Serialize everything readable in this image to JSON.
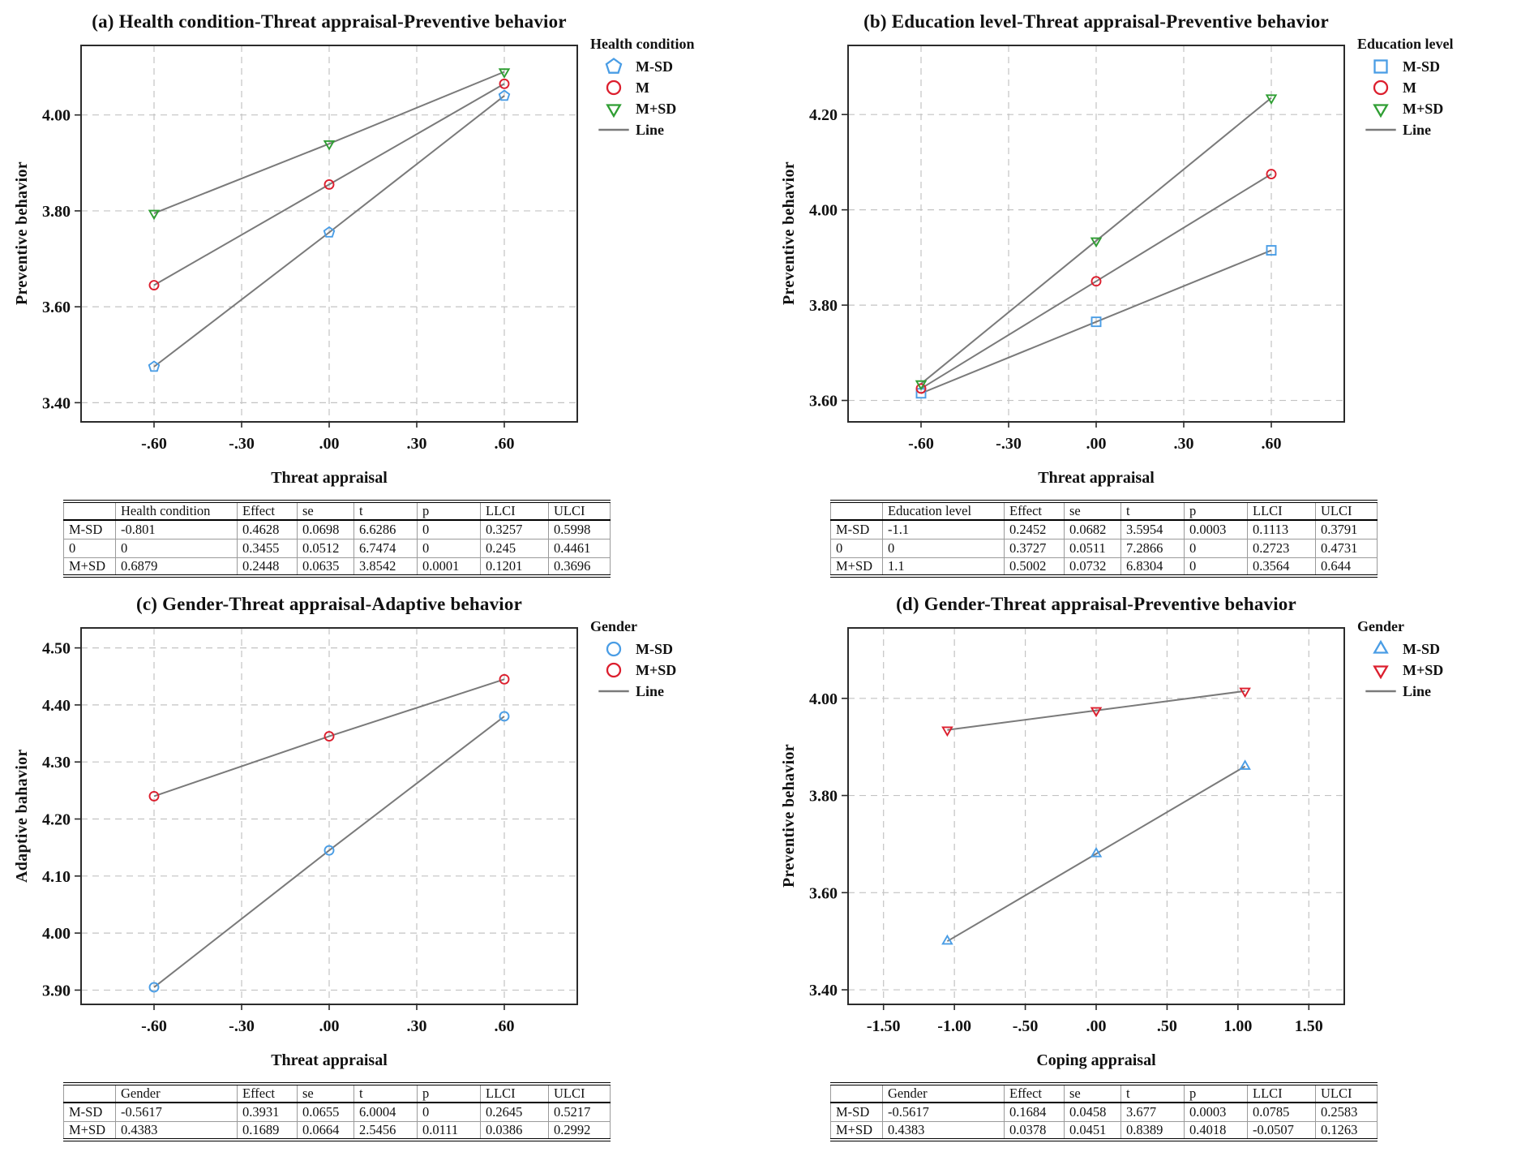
{
  "figure": {
    "background": "#ffffff",
    "palette": {
      "blue": "#4a9de5",
      "red": "#dc1f2e",
      "green": "#2f9e33",
      "gray_line": "#7a7a7a",
      "grid": "#c3c3c3",
      "frame": "#2b2b2b"
    }
  },
  "chart_data": [
    {
      "id": "a",
      "type": "line",
      "title": "(a) Health condition-Threat appraisal-Preventive behavior",
      "xlabel": "Threat appraisal",
      "ylabel": "Preventive behavior",
      "xlim": [
        -0.85,
        0.85
      ],
      "ylim": [
        3.36,
        4.145
      ],
      "grid": true,
      "xticks": [
        -0.6,
        -0.3,
        0,
        0.3,
        0.6
      ],
      "xtick_labels": [
        "-.60",
        "-.30",
        ".00",
        ".30",
        ".60"
      ],
      "yticks": [
        3.4,
        3.6,
        3.8,
        4.0
      ],
      "ytick_labels": [
        "3.40",
        "3.60",
        "3.80",
        "4.00"
      ],
      "legend": {
        "title": "Health condition",
        "position": "right",
        "items": [
          {
            "label": "M-SD",
            "marker": "pentagon",
            "color": "blue"
          },
          {
            "label": "M",
            "marker": "circle",
            "color": "red"
          },
          {
            "label": "M+SD",
            "marker": "triangle-down",
            "color": "green"
          },
          {
            "label": "Line",
            "marker": "line",
            "color": "gray_line"
          }
        ]
      },
      "series": [
        {
          "name": "M-SD",
          "marker": "pentagon",
          "color": "blue",
          "x": [
            -0.6,
            0,
            0.6
          ],
          "y": [
            3.475,
            3.755,
            4.04
          ]
        },
        {
          "name": "M",
          "marker": "circle",
          "color": "red",
          "x": [
            -0.6,
            0,
            0.6
          ],
          "y": [
            3.645,
            3.855,
            4.065
          ]
        },
        {
          "name": "M+SD",
          "marker": "triangle-down",
          "color": "green",
          "x": [
            -0.6,
            0,
            0.6
          ],
          "y": [
            3.795,
            3.94,
            4.09
          ]
        }
      ],
      "table": {
        "headers": [
          "",
          "Health condition",
          "Effect",
          "se",
          "t",
          "p",
          "LLCI",
          "ULCI"
        ],
        "rows": [
          [
            "M-SD",
            "-0.801",
            "0.4628",
            "0.0698",
            "6.6286",
            "0",
            "0.3257",
            "0.5998"
          ],
          [
            "0",
            "0",
            "0.3455",
            "0.0512",
            "6.7474",
            "0",
            "0.245",
            "0.4461"
          ],
          [
            "M+SD",
            "0.6879",
            "0.2448",
            "0.0635",
            "3.8542",
            "0.0001",
            "0.1201",
            "0.3696"
          ]
        ]
      }
    },
    {
      "id": "b",
      "type": "line",
      "title": "(b) Education level-Threat appraisal-Preventive behavior",
      "xlabel": "Threat appraisal",
      "ylabel": "Preventive behavior",
      "xlim": [
        -0.85,
        0.85
      ],
      "ylim": [
        3.555,
        4.345
      ],
      "grid": true,
      "xticks": [
        -0.6,
        -0.3,
        0,
        0.3,
        0.6
      ],
      "xtick_labels": [
        "-.60",
        "-.30",
        ".00",
        ".30",
        ".60"
      ],
      "yticks": [
        3.6,
        3.8,
        4.0,
        4.2
      ],
      "ytick_labels": [
        "3.60",
        "3.80",
        "4.00",
        "4.20"
      ],
      "legend": {
        "title": "Education level",
        "position": "right",
        "items": [
          {
            "label": "M-SD",
            "marker": "square",
            "color": "blue"
          },
          {
            "label": "M",
            "marker": "circle",
            "color": "red"
          },
          {
            "label": "M+SD",
            "marker": "triangle-down",
            "color": "green"
          },
          {
            "label": "Line",
            "marker": "line",
            "color": "gray_line"
          }
        ]
      },
      "series": [
        {
          "name": "M-SD",
          "marker": "square",
          "color": "blue",
          "x": [
            -0.6,
            0,
            0.6
          ],
          "y": [
            3.615,
            3.765,
            3.915
          ]
        },
        {
          "name": "M",
          "marker": "circle",
          "color": "red",
          "x": [
            -0.6,
            0,
            0.6
          ],
          "y": [
            3.625,
            3.85,
            4.075
          ]
        },
        {
          "name": "M+SD",
          "marker": "triangle-down",
          "color": "green",
          "x": [
            -0.6,
            0,
            0.6
          ],
          "y": [
            3.635,
            3.935,
            4.235
          ]
        }
      ],
      "table": {
        "headers": [
          "",
          "Education level",
          "Effect",
          "se",
          "t",
          "p",
          "LLCI",
          "ULCI"
        ],
        "rows": [
          [
            "M-SD",
            "-1.1",
            "0.2452",
            "0.0682",
            "3.5954",
            "0.0003",
            "0.1113",
            "0.3791"
          ],
          [
            "0",
            "0",
            "0.3727",
            "0.0511",
            "7.2866",
            "0",
            "0.2723",
            "0.4731"
          ],
          [
            "M+SD",
            "1.1",
            "0.5002",
            "0.0732",
            "6.8304",
            "0",
            "0.3564",
            "0.644"
          ]
        ]
      }
    },
    {
      "id": "c",
      "type": "line",
      "title": "(c) Gender-Threat appraisal-Adaptive behavior",
      "xlabel": "Threat appraisal",
      "ylabel": "Adaptive bahavior",
      "xlim": [
        -0.85,
        0.85
      ],
      "ylim": [
        3.875,
        4.535
      ],
      "grid": true,
      "xticks": [
        -0.6,
        -0.3,
        0,
        0.3,
        0.6
      ],
      "xtick_labels": [
        "-.60",
        "-.30",
        ".00",
        ".30",
        ".60"
      ],
      "yticks": [
        3.9,
        4.0,
        4.1,
        4.2,
        4.3,
        4.4,
        4.5
      ],
      "ytick_labels": [
        "3.90",
        "4.00",
        "4.10",
        "4.20",
        "4.30",
        "4.40",
        "4.50"
      ],
      "legend": {
        "title": "Gender",
        "position": "right",
        "items": [
          {
            "label": "M-SD",
            "marker": "circle",
            "color": "blue"
          },
          {
            "label": "M+SD",
            "marker": "circle",
            "color": "red"
          },
          {
            "label": "Line",
            "marker": "line",
            "color": "gray_line"
          }
        ]
      },
      "series": [
        {
          "name": "M-SD",
          "marker": "circle",
          "color": "blue",
          "x": [
            -0.6,
            0,
            0.6
          ],
          "y": [
            3.905,
            4.145,
            4.38
          ]
        },
        {
          "name": "M+SD",
          "marker": "circle",
          "color": "red",
          "x": [
            -0.6,
            0,
            0.6
          ],
          "y": [
            4.24,
            4.345,
            4.445
          ]
        }
      ],
      "table": {
        "headers": [
          "",
          "Gender",
          "Effect",
          "se",
          "t",
          "p",
          "LLCI",
          "ULCI"
        ],
        "rows": [
          [
            "M-SD",
            "-0.5617",
            "0.3931",
            "0.0655",
            "6.0004",
            "0",
            "0.2645",
            "0.5217"
          ],
          [
            "M+SD",
            "0.4383",
            "0.1689",
            "0.0664",
            "2.5456",
            "0.0111",
            "0.0386",
            "0.2992"
          ]
        ]
      }
    },
    {
      "id": "d",
      "type": "line",
      "title": "(d) Gender-Threat appraisal-Preventive behavior",
      "xlabel": "Coping appraisal",
      "ylabel": "Preventive behavior",
      "xlim": [
        -1.75,
        1.75
      ],
      "ylim": [
        3.37,
        4.145
      ],
      "grid": true,
      "xticks": [
        -1.5,
        -1.0,
        -0.5,
        0,
        0.5,
        1.0,
        1.5
      ],
      "xtick_labels": [
        "-1.50",
        "-1.00",
        "-.50",
        ".00",
        ".50",
        "1.00",
        "1.50"
      ],
      "yticks": [
        3.4,
        3.6,
        3.8,
        4.0
      ],
      "ytick_labels": [
        "3.40",
        "3.60",
        "3.80",
        "4.00"
      ],
      "legend": {
        "title": "Gender",
        "position": "right",
        "items": [
          {
            "label": "M-SD",
            "marker": "triangle-up",
            "color": "blue"
          },
          {
            "label": "M+SD",
            "marker": "triangle-down",
            "color": "red"
          },
          {
            "label": "Line",
            "marker": "line",
            "color": "gray_line"
          }
        ]
      },
      "series": [
        {
          "name": "M-SD",
          "marker": "triangle-up",
          "color": "blue",
          "x": [
            -1.05,
            0,
            1.05
          ],
          "y": [
            3.5,
            3.68,
            3.86
          ]
        },
        {
          "name": "M+SD",
          "marker": "triangle-down",
          "color": "red",
          "x": [
            -1.05,
            0,
            1.05
          ],
          "y": [
            3.935,
            3.975,
            4.015
          ]
        }
      ],
      "table": {
        "headers": [
          "",
          "Gender",
          "Effect",
          "se",
          "t",
          "p",
          "LLCI",
          "ULCI"
        ],
        "rows": [
          [
            "M-SD",
            "-0.5617",
            "0.1684",
            "0.0458",
            "3.677",
            "0.0003",
            "0.0785",
            "0.2583"
          ],
          [
            "M+SD",
            "0.4383",
            "0.0378",
            "0.0451",
            "0.8389",
            "0.4018",
            "-0.0507",
            "0.1263"
          ]
        ]
      }
    }
  ]
}
